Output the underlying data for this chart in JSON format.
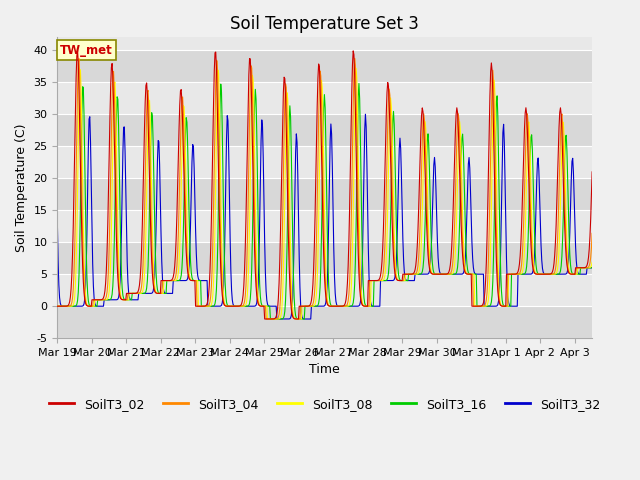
{
  "title": "Soil Temperature Set 3",
  "xlabel": "Time",
  "ylabel": "Soil Temperature (C)",
  "annotation_text": "TW_met",
  "ylim": [
    -5,
    42
  ],
  "yticks": [
    -5,
    0,
    5,
    10,
    15,
    20,
    25,
    30,
    35,
    40
  ],
  "series_labels": [
    "SoilT3_02",
    "SoilT3_04",
    "SoilT3_08",
    "SoilT3_16",
    "SoilT3_32"
  ],
  "series_colors": [
    "#cc0000",
    "#ff8800",
    "#ffff00",
    "#00cc00",
    "#0000cc"
  ],
  "x_tick_labels": [
    "Mar 19",
    "Mar 20",
    "Mar 21",
    "Mar 22",
    "Mar 23",
    "Mar 24",
    "Mar 25",
    "Mar 26",
    "Mar 27",
    "Mar 28",
    "Mar 29",
    "Mar 30",
    "Mar 31",
    "Apr 1",
    "Apr 2",
    "Apr 3"
  ],
  "n_days": 15.5,
  "title_fontsize": 12,
  "axis_fontsize": 9,
  "legend_fontsize": 9,
  "fig_bg": "#f0f0f0",
  "plot_bg": "#e8e8e8",
  "band_colors": [
    "#d8d8d8",
    "#e8e8e8"
  ]
}
